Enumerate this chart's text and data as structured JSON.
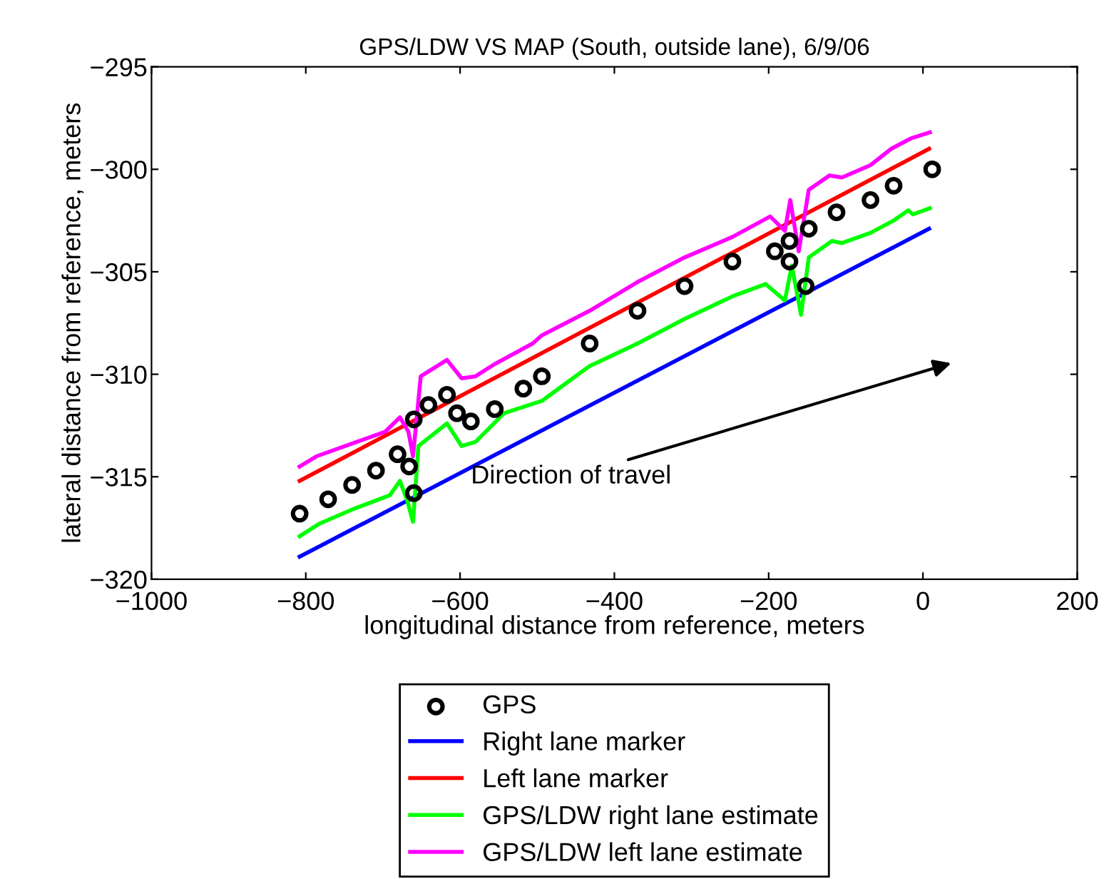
{
  "chart_data": {
    "type": "line",
    "title": "GPS/LDW VS MAP (South, outside lane), 6/9/06",
    "xlabel": "longitudinal distance from reference, meters",
    "ylabel": "lateral distance from reference, meters",
    "xlim": [
      -1000,
      200
    ],
    "xticks": [
      -1000,
      -800,
      -600,
      -400,
      -200,
      0,
      200
    ],
    "ylim": [
      -320,
      -295
    ],
    "yticks": [
      -320,
      -315,
      -310,
      -305,
      -300,
      -295
    ],
    "grid": false,
    "legend": "bottom",
    "annotations": [
      "Direction of travel"
    ],
    "series": [
      {
        "name": "GPS",
        "type": "scatter",
        "marker": "circle",
        "color": "#000000",
        "x": [
          -808,
          -771,
          -740,
          -709,
          -681,
          -666,
          -660,
          -660,
          -641,
          -617,
          -604,
          -586,
          -555,
          -518,
          -494,
          -432,
          -370,
          -309,
          -247,
          -192,
          -173,
          -173,
          -152,
          -148,
          -112,
          -68,
          -38,
          12
        ],
        "values": [
          -316.8,
          -316.1,
          -315.4,
          -314.7,
          -313.9,
          -314.5,
          -315.8,
          -312.2,
          -311.5,
          -311.0,
          -311.9,
          -312.3,
          -311.7,
          -310.7,
          -310.1,
          -308.5,
          -306.9,
          -305.7,
          -304.5,
          -304.0,
          -304.5,
          -303.5,
          -305.7,
          -302.9,
          -302.1,
          -301.5,
          -300.8,
          -300.0
        ]
      },
      {
        "name": "Right lane marker",
        "marker": "none",
        "color": "#0000ff",
        "x": [
          -808,
          8
        ],
        "values": [
          -318.9,
          -302.9
        ]
      },
      {
        "name": "Left lane marker",
        "marker": "none",
        "color": "#ff0000",
        "x": [
          -808,
          8
        ],
        "values": [
          -315.2,
          -299.0
        ]
      },
      {
        "name": "GPS/LDW right lane estimate",
        "marker": "none",
        "color": "#00ff00",
        "x": [
          -808,
          -783,
          -740,
          -691,
          -678,
          -669,
          -661,
          -654,
          -617,
          -598,
          -580,
          -543,
          -494,
          -432,
          -370,
          -309,
          -247,
          -204,
          -179,
          -170,
          -158,
          -148,
          -118,
          -105,
          -68,
          -38,
          -19,
          -13,
          9
        ],
        "values": [
          -317.9,
          -317.3,
          -316.6,
          -315.9,
          -315.2,
          -316.1,
          -317.2,
          -313.5,
          -312.4,
          -313.5,
          -313.3,
          -311.9,
          -311.3,
          -309.6,
          -308.5,
          -307.3,
          -306.2,
          -305.6,
          -306.4,
          -304.7,
          -307.1,
          -304.3,
          -303.5,
          -303.6,
          -303.1,
          -302.5,
          -302.0,
          -302.2,
          -301.9
        ]
      },
      {
        "name": "GPS/LDW left lane estimate",
        "marker": "none",
        "color": "#ff00ff",
        "x": [
          -808,
          -786,
          -734,
          -697,
          -678,
          -667,
          -661,
          -651,
          -617,
          -598,
          -580,
          -555,
          -506,
          -494,
          -432,
          -370,
          -309,
          -247,
          -198,
          -179,
          -172,
          -161,
          -148,
          -121,
          -105,
          -68,
          -41,
          -16,
          9
        ],
        "values": [
          -314.5,
          -314.0,
          -313.3,
          -312.8,
          -312.1,
          -312.8,
          -314.0,
          -310.1,
          -309.3,
          -310.2,
          -310.1,
          -309.5,
          -308.5,
          -308.1,
          -306.9,
          -305.5,
          -304.3,
          -303.3,
          -302.3,
          -303.0,
          -301.5,
          -304.0,
          -301.0,
          -300.3,
          -300.4,
          -299.8,
          -299.0,
          -298.5,
          -298.2
        ]
      }
    ]
  }
}
